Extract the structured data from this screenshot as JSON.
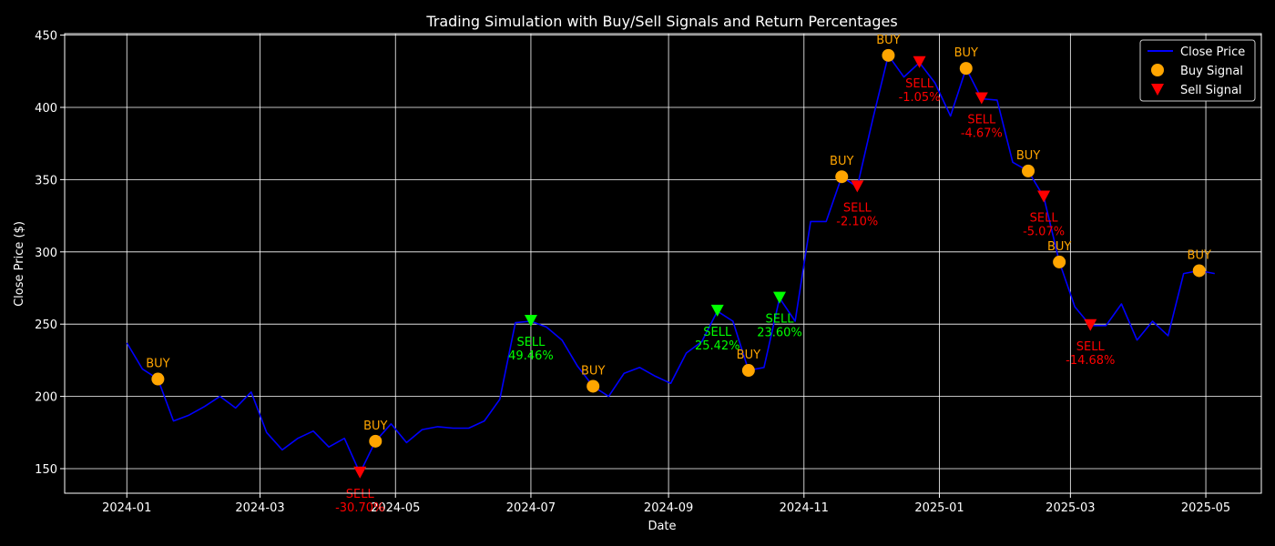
{
  "chart_data": {
    "type": "line",
    "title": "Trading Simulation with Buy/Sell Signals and Return Percentages",
    "xlabel": "Date",
    "ylabel": "Close Price ($)",
    "xlim": [
      "2023-12-04",
      "2025-05-26"
    ],
    "ylim": [
      133,
      451
    ],
    "grid": true,
    "legend_position": "top-right",
    "x_ticks": [
      "2024-01",
      "2024-03",
      "2024-05",
      "2024-07",
      "2024-09",
      "2024-11",
      "2025-01",
      "2025-03",
      "2025-05"
    ],
    "y_ticks": [
      150,
      200,
      250,
      300,
      350,
      400,
      450
    ],
    "colors": {
      "background": "#000000",
      "line": "#0000ff",
      "buy": "#ffa500",
      "sell_loss": "#ff0000",
      "sell_gain": "#00ff00",
      "grid": "#ffffff",
      "text": "#ffffff"
    },
    "series": [
      {
        "name": "Close Price",
        "x": [
          "2024-01-01",
          "2024-01-08",
          "2024-01-15",
          "2024-01-22",
          "2024-01-29",
          "2024-02-05",
          "2024-02-12",
          "2024-02-19",
          "2024-02-26",
          "2024-03-04",
          "2024-03-11",
          "2024-03-18",
          "2024-03-25",
          "2024-04-01",
          "2024-04-08",
          "2024-04-15",
          "2024-04-22",
          "2024-04-29",
          "2024-05-06",
          "2024-05-13",
          "2024-05-20",
          "2024-05-27",
          "2024-06-03",
          "2024-06-10",
          "2024-06-17",
          "2024-06-24",
          "2024-07-01",
          "2024-07-08",
          "2024-07-15",
          "2024-07-22",
          "2024-07-29",
          "2024-08-05",
          "2024-08-12",
          "2024-08-19",
          "2024-08-26",
          "2024-09-02",
          "2024-09-09",
          "2024-09-16",
          "2024-09-23",
          "2024-09-30",
          "2024-10-07",
          "2024-10-14",
          "2024-10-21",
          "2024-10-28",
          "2024-11-04",
          "2024-11-11",
          "2024-11-18",
          "2024-11-25",
          "2024-12-02",
          "2024-12-09",
          "2024-12-16",
          "2024-12-23",
          "2024-12-30",
          "2025-01-06",
          "2025-01-13",
          "2025-01-20",
          "2025-01-27",
          "2025-02-03",
          "2025-02-10",
          "2025-02-17",
          "2025-02-24",
          "2025-03-03",
          "2025-03-10",
          "2025-03-17",
          "2025-03-24",
          "2025-03-31",
          "2025-04-07",
          "2025-04-14",
          "2025-04-21",
          "2025-04-28",
          "2025-05-05"
        ],
        "values": [
          237,
          219,
          212,
          183,
          187,
          193,
          200,
          192,
          203,
          175,
          163,
          171,
          176,
          165,
          171,
          147,
          169,
          181,
          168,
          177,
          179,
          178,
          178,
          183,
          198,
          251,
          252,
          248,
          239,
          221,
          207,
          200,
          216,
          220,
          214,
          209,
          230,
          238,
          259,
          252,
          218,
          220,
          268,
          252,
          321,
          321,
          352,
          345,
          392,
          436,
          421,
          431,
          417,
          394,
          427,
          406,
          405,
          362,
          356,
          338,
          293,
          262,
          249,
          249,
          264,
          239,
          252,
          242,
          285,
          287,
          285
        ]
      }
    ],
    "buy_signals": [
      {
        "date": "2024-01-15",
        "value": 212,
        "label": "BUY"
      },
      {
        "date": "2024-04-22",
        "value": 169,
        "label": "BUY"
      },
      {
        "date": "2024-07-29",
        "value": 207,
        "label": "BUY"
      },
      {
        "date": "2024-10-07",
        "value": 218,
        "label": "BUY"
      },
      {
        "date": "2024-11-18",
        "value": 352,
        "label": "BUY"
      },
      {
        "date": "2024-12-09",
        "value": 436,
        "label": "BUY"
      },
      {
        "date": "2025-01-13",
        "value": 427,
        "label": "BUY"
      },
      {
        "date": "2025-02-10",
        "value": 356,
        "label": "BUY"
      },
      {
        "date": "2025-02-24",
        "value": 293,
        "label": "BUY"
      },
      {
        "date": "2025-04-28",
        "value": 287,
        "label": "BUY"
      }
    ],
    "sell_signals": [
      {
        "date": "2024-04-15",
        "value": 147,
        "label": "SELL",
        "ret": "-30.70%",
        "result": "loss"
      },
      {
        "date": "2024-07-01",
        "value": 252,
        "label": "SELL",
        "ret": "49.46%",
        "result": "gain"
      },
      {
        "date": "2024-09-23",
        "value": 259,
        "label": "SELL",
        "ret": "25.42%",
        "result": "gain"
      },
      {
        "date": "2024-10-21",
        "value": 268,
        "label": "SELL",
        "ret": "23.60%",
        "result": "gain"
      },
      {
        "date": "2024-11-25",
        "value": 345,
        "label": "SELL",
        "ret": "-2.10%",
        "result": "loss"
      },
      {
        "date": "2024-12-23",
        "value": 431,
        "label": "SELL",
        "ret": "-1.05%",
        "result": "loss"
      },
      {
        "date": "2025-01-20",
        "value": 406,
        "label": "SELL",
        "ret": "-4.67%",
        "result": "loss"
      },
      {
        "date": "2025-02-17",
        "value": 338,
        "label": "SELL",
        "ret": "-5.07%",
        "result": "loss"
      },
      {
        "date": "2025-03-10",
        "value": 249,
        "label": "SELL",
        "ret": "-14.68%",
        "result": "loss"
      }
    ],
    "legend": [
      {
        "label": "Close Price",
        "kind": "line"
      },
      {
        "label": "Buy Signal",
        "kind": "buy"
      },
      {
        "label": "Sell Signal",
        "kind": "sell"
      }
    ]
  }
}
